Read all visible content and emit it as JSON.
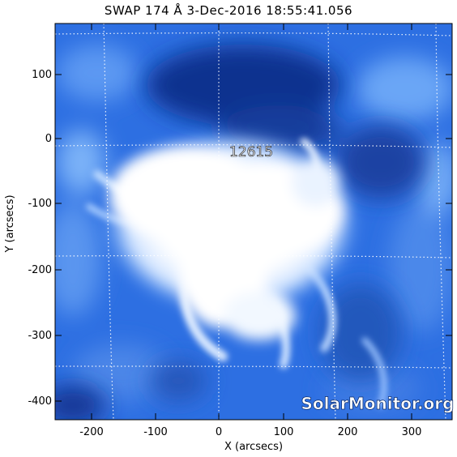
{
  "title": "SWAP 174 Å  3-Dec-2016 18:55:41.056",
  "xlabel": "X (arcsecs)",
  "ylabel": "Y (arcsecs)",
  "active_region": "12615",
  "watermark": "SolarMonitor.org",
  "x_ticks": [
    "-200",
    "-100",
    "0",
    "100",
    "200",
    "300"
  ],
  "y_ticks": [
    "100",
    "0",
    "-100",
    "-200",
    "-300",
    "-400"
  ],
  "colors": {
    "dark_blue": "#0c2f8c",
    "mid_blue": "#2f6fe0",
    "light_blue": "#8fc0ff",
    "white": "#ffffff"
  }
}
